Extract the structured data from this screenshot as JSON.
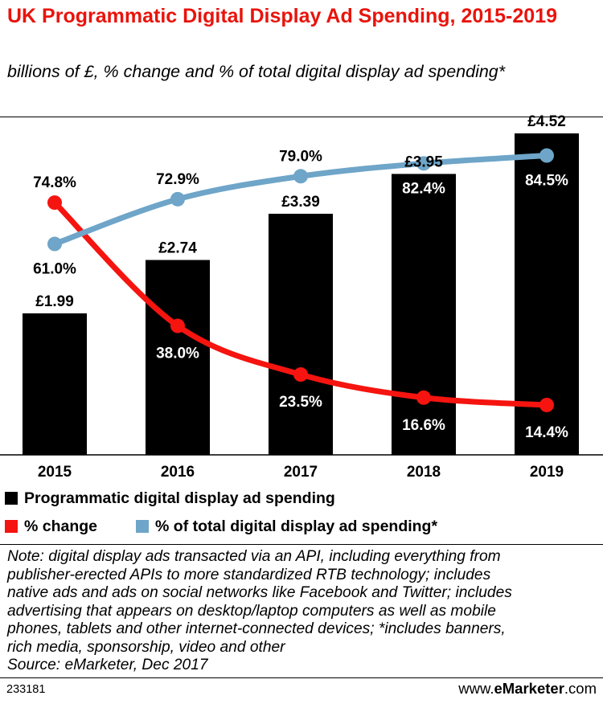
{
  "title": "UK Programmatic Digital Display Ad Spending, 2015-2019",
  "subtitle": "billions of £, % change and % of total digital display ad spending*",
  "colors": {
    "title": "#e8140c",
    "bars": "#000000",
    "change_line": "#f5140f",
    "share_line": "#6ea5c8"
  },
  "chart_data": {
    "type": "bar",
    "categories": [
      "2015",
      "2016",
      "2017",
      "2018",
      "2019"
    ],
    "series": [
      {
        "name": "Programmatic digital display ad spending",
        "type": "bar",
        "values": [
          1.99,
          2.74,
          3.39,
          3.95,
          4.52
        ],
        "labels": [
          "£1.99",
          "£2.74",
          "£3.39",
          "£3.95",
          "£4.52"
        ]
      },
      {
        "name": "% change",
        "type": "line",
        "values": [
          74.8,
          38.0,
          23.5,
          16.6,
          14.4
        ],
        "labels": [
          "74.8%",
          "38.0%",
          "23.5%",
          "16.6%",
          "14.4%"
        ]
      },
      {
        "name": "% of total digital display ad spending*",
        "type": "line",
        "values": [
          61.0,
          72.9,
          79.0,
          82.4,
          84.5
        ],
        "labels": [
          "61.0%",
          "72.9%",
          "79.0%",
          "82.4%",
          "84.5%"
        ]
      }
    ],
    "grid": false,
    "legend_position": "bottom"
  },
  "legend": [
    {
      "label": "Programmatic digital display ad spending",
      "color": "#000000"
    },
    {
      "label": "% change",
      "color": "#f5140f"
    },
    {
      "label": "% of total digital display ad spending*",
      "color": "#6ea5c8"
    }
  ],
  "note": [
    "Note: digital display ads transacted via an API, including everything from",
    "publisher-erected APIs to more standardized RTB technology; includes",
    "native ads and ads on social networks like Facebook and Twitter; includes",
    "advertising that appears on desktop/laptop computers as well as mobile",
    "phones, tablets and other internet-connected devices; *includes banners,",
    "rich media, sponsorship, video and other",
    "Source: eMarketer, Dec 2017"
  ],
  "footer": {
    "id": "233181",
    "site_prefix": "www.",
    "site_brand": "eMarketer",
    "site_suffix": ".com"
  }
}
